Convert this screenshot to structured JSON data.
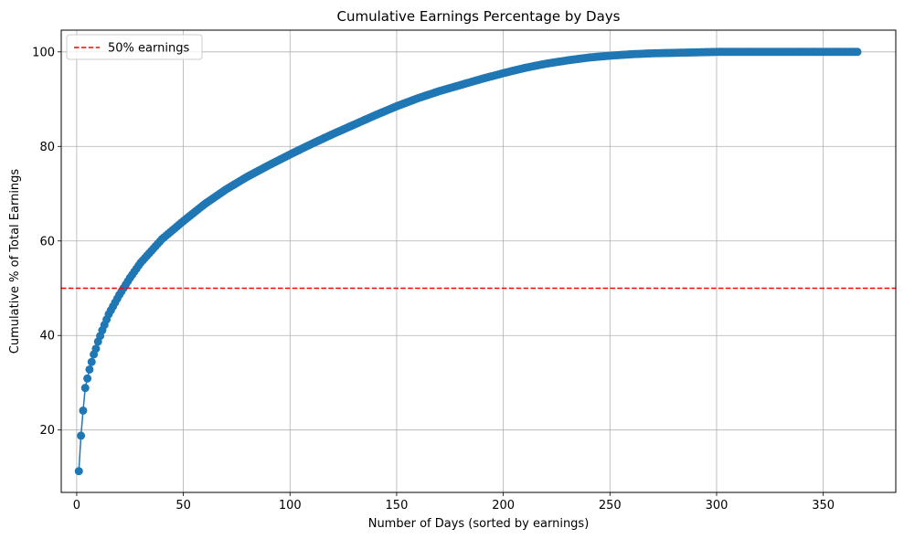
{
  "chart_data": {
    "type": "line",
    "title": "Cumulative Earnings Percentage by Days",
    "xlabel": "Number of Days (sorted by earnings)",
    "ylabel": "Cumulative % of Total Earnings",
    "xlim": [
      -7.25,
      384
    ],
    "ylim": [
      6.8,
      104.6
    ],
    "xticks": [
      0,
      50,
      100,
      150,
      200,
      250,
      300,
      350
    ],
    "yticks": [
      20,
      40,
      60,
      80,
      100
    ],
    "grid": true,
    "legend": {
      "placement": "upper-left"
    },
    "series": [
      {
        "marker": "circle",
        "color": "#1f77b4",
        "days": 366,
        "x": [
          1,
          2,
          3,
          4,
          5,
          6,
          7,
          8,
          9,
          10,
          12,
          15,
          20,
          25,
          30,
          40,
          50,
          60,
          70,
          80,
          90,
          100,
          110,
          120,
          130,
          140,
          150,
          160,
          170,
          180,
          190,
          200,
          210,
          220,
          230,
          240,
          250,
          260,
          270,
          280,
          290,
          300,
          320,
          340,
          360,
          366
        ],
        "y": [
          11.3,
          18.8,
          24.1,
          28.9,
          30.9,
          32.8,
          34.4,
          36.0,
          37.2,
          38.7,
          41.1,
          44.5,
          48.6,
          52.2,
          55.4,
          60.4,
          64.2,
          67.8,
          70.9,
          73.6,
          76.0,
          78.3,
          80.5,
          82.6,
          84.6,
          86.6,
          88.5,
          90.2,
          91.7,
          93.0,
          94.3,
          95.5,
          96.6,
          97.5,
          98.2,
          98.8,
          99.2,
          99.5,
          99.7,
          99.8,
          99.9,
          100.0,
          100.0,
          100.0,
          100.0,
          100.0
        ]
      },
      {
        "name": "50% earnings",
        "kind": "hline",
        "y": 50,
        "color": "#ff0000",
        "style": "dashed"
      }
    ]
  }
}
